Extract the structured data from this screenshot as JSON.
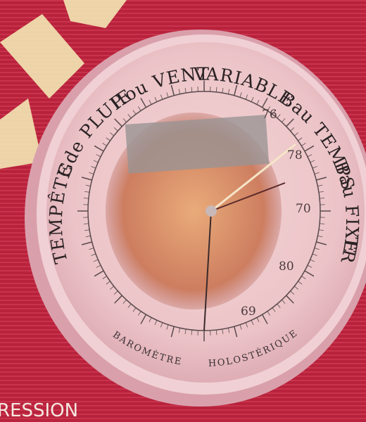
{
  "dial": {
    "labels": [
      "TEMPÊTE",
      "Gde PLUIE",
      "P.ou VENT",
      "VARIABLE",
      "Bau TEMPS",
      "Bau FIXE",
      "TRÈS SEC"
    ],
    "bottom": [
      "BAROMÈTRE",
      "HOLOSTÉRIQUE"
    ],
    "scale": [
      "76",
      "78",
      "70",
      "80",
      "69"
    ]
  },
  "caption": "RESSION"
}
